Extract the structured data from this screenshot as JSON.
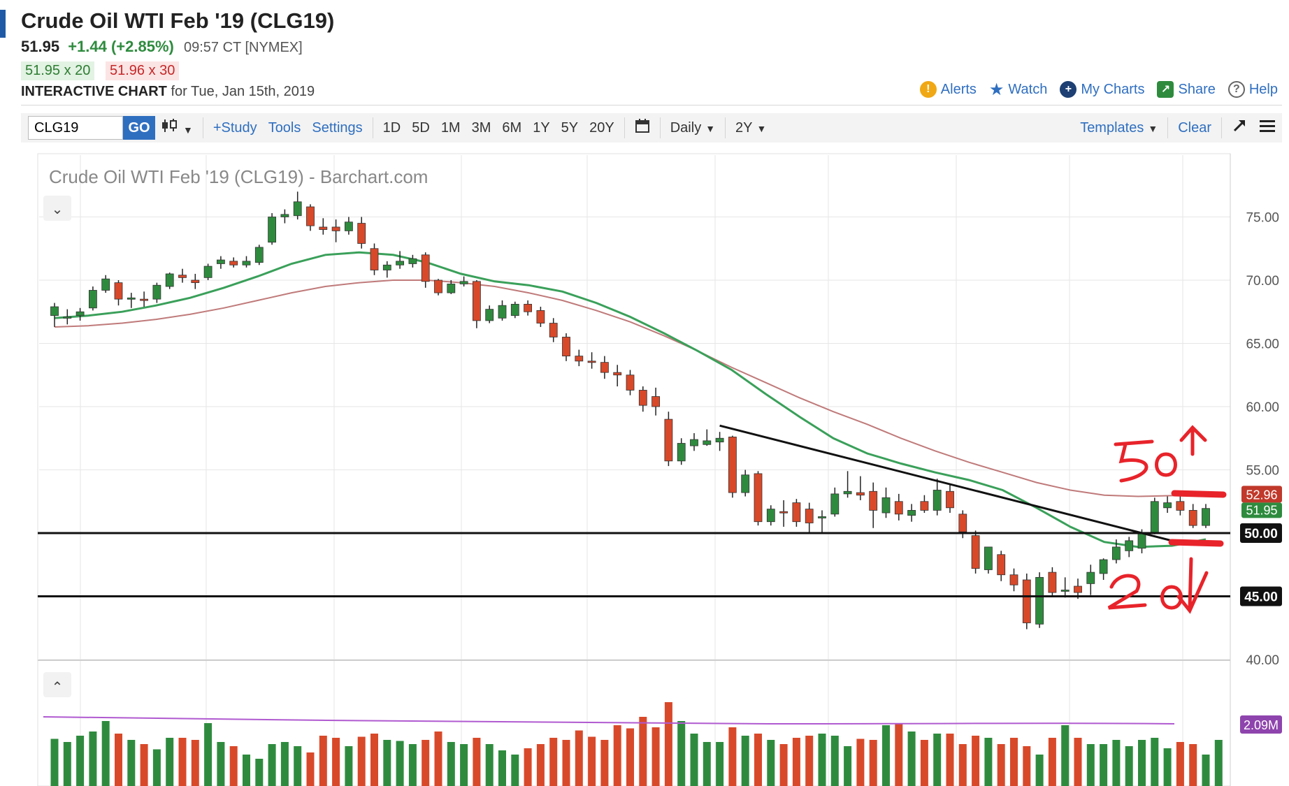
{
  "header": {
    "title": "Crude Oil WTI Feb '19 (CLG19)",
    "last": "51.95",
    "change": "+1.44 (+2.85%)",
    "time": "09:57 CT [NYMEX]",
    "bid": "51.95 x 20",
    "ask": "51.96 x 30",
    "interactive_label": "INTERACTIVE CHART",
    "interactive_date": "for Tue, Jan 15th, 2019"
  },
  "top_links": {
    "alerts": "Alerts",
    "watch": "Watch",
    "my_charts": "My Charts",
    "share": "Share",
    "help": "Help"
  },
  "toolbar": {
    "symbol_value": "CLG19",
    "go": "GO",
    "study": "+Study",
    "tools": "Tools",
    "settings": "Settings",
    "ranges": [
      "1D",
      "5D",
      "1M",
      "3M",
      "6M",
      "1Y",
      "5Y",
      "20Y"
    ],
    "period": "Daily",
    "span": "2Y",
    "templates": "Templates",
    "clear": "Clear"
  },
  "colors": {
    "up": "#2e8b3e",
    "down": "#d8492a",
    "ma_short": "#3aa05a",
    "ma_long": "#c07a7a",
    "volume_ma": "#b05ad0",
    "annotation": "#e8232a",
    "link": "#2f6fc0"
  },
  "chart_data": {
    "type": "candlestick",
    "title": "Crude Oil WTI Feb '19 (CLG19) - Barchart.com",
    "ylim": [
      40,
      77.5
    ],
    "y_ticks": [
      "75.00",
      "70.00",
      "65.00",
      "60.00",
      "55.00",
      "50.00",
      "45.00",
      "40.00"
    ],
    "grid": true,
    "candles": [
      {
        "o": 67.2,
        "h": 68.2,
        "l": 66.3,
        "c": 67.9
      },
      {
        "o": 67.0,
        "h": 67.7,
        "l": 66.5,
        "c": 67.1
      },
      {
        "o": 67.2,
        "h": 67.8,
        "l": 66.8,
        "c": 67.5
      },
      {
        "o": 67.8,
        "h": 69.5,
        "l": 67.6,
        "c": 69.2
      },
      {
        "o": 69.2,
        "h": 70.4,
        "l": 69.0,
        "c": 70.1
      },
      {
        "o": 69.8,
        "h": 70.0,
        "l": 68.0,
        "c": 68.5
      },
      {
        "o": 68.6,
        "h": 69.0,
        "l": 67.8,
        "c": 68.6
      },
      {
        "o": 68.5,
        "h": 69.1,
        "l": 67.9,
        "c": 68.4
      },
      {
        "o": 68.5,
        "h": 69.8,
        "l": 68.2,
        "c": 69.6
      },
      {
        "o": 69.5,
        "h": 70.6,
        "l": 69.3,
        "c": 70.5
      },
      {
        "o": 70.4,
        "h": 70.9,
        "l": 69.8,
        "c": 70.2
      },
      {
        "o": 70.0,
        "h": 70.5,
        "l": 69.3,
        "c": 69.8
      },
      {
        "o": 70.2,
        "h": 71.3,
        "l": 70.0,
        "c": 71.1
      },
      {
        "o": 71.3,
        "h": 71.9,
        "l": 70.9,
        "c": 71.6
      },
      {
        "o": 71.5,
        "h": 71.8,
        "l": 71.0,
        "c": 71.2
      },
      {
        "o": 71.2,
        "h": 71.9,
        "l": 71.0,
        "c": 71.5
      },
      {
        "o": 71.4,
        "h": 72.8,
        "l": 71.2,
        "c": 72.6
      },
      {
        "o": 73.0,
        "h": 75.3,
        "l": 72.8,
        "c": 75.0
      },
      {
        "o": 75.0,
        "h": 75.6,
        "l": 74.5,
        "c": 75.2
      },
      {
        "o": 75.1,
        "h": 77.0,
        "l": 74.8,
        "c": 76.2
      },
      {
        "o": 75.8,
        "h": 76.0,
        "l": 73.9,
        "c": 74.3
      },
      {
        "o": 74.2,
        "h": 74.9,
        "l": 73.6,
        "c": 74.0
      },
      {
        "o": 74.2,
        "h": 74.8,
        "l": 73.0,
        "c": 73.9
      },
      {
        "o": 73.9,
        "h": 75.0,
        "l": 73.6,
        "c": 74.6
      },
      {
        "o": 74.5,
        "h": 75.0,
        "l": 72.5,
        "c": 72.9
      },
      {
        "o": 72.5,
        "h": 72.9,
        "l": 70.4,
        "c": 70.8
      },
      {
        "o": 70.8,
        "h": 71.5,
        "l": 70.2,
        "c": 71.2
      },
      {
        "o": 71.2,
        "h": 72.3,
        "l": 70.9,
        "c": 71.5
      },
      {
        "o": 71.3,
        "h": 72.0,
        "l": 71.0,
        "c": 71.7
      },
      {
        "o": 72.0,
        "h": 72.2,
        "l": 69.4,
        "c": 69.9
      },
      {
        "o": 70.0,
        "h": 70.1,
        "l": 68.8,
        "c": 69.0
      },
      {
        "o": 69.0,
        "h": 70.0,
        "l": 68.9,
        "c": 69.7
      },
      {
        "o": 69.7,
        "h": 70.3,
        "l": 69.5,
        "c": 69.9
      },
      {
        "o": 69.9,
        "h": 70.0,
        "l": 66.2,
        "c": 66.8
      },
      {
        "o": 66.8,
        "h": 68.0,
        "l": 66.6,
        "c": 67.7
      },
      {
        "o": 67.0,
        "h": 68.4,
        "l": 66.8,
        "c": 68.0
      },
      {
        "o": 67.2,
        "h": 68.3,
        "l": 67.0,
        "c": 68.1
      },
      {
        "o": 68.1,
        "h": 68.4,
        "l": 67.2,
        "c": 67.5
      },
      {
        "o": 67.6,
        "h": 67.9,
        "l": 66.3,
        "c": 66.6
      },
      {
        "o": 66.6,
        "h": 67.0,
        "l": 65.1,
        "c": 65.5
      },
      {
        "o": 65.5,
        "h": 65.8,
        "l": 63.6,
        "c": 64.0
      },
      {
        "o": 64.0,
        "h": 64.5,
        "l": 63.2,
        "c": 63.6
      },
      {
        "o": 63.6,
        "h": 64.3,
        "l": 63.0,
        "c": 63.5
      },
      {
        "o": 63.5,
        "h": 64.0,
        "l": 62.2,
        "c": 62.7
      },
      {
        "o": 62.7,
        "h": 63.3,
        "l": 61.6,
        "c": 62.5
      },
      {
        "o": 62.5,
        "h": 62.9,
        "l": 60.9,
        "c": 61.3
      },
      {
        "o": 61.3,
        "h": 61.6,
        "l": 59.6,
        "c": 60.1
      },
      {
        "o": 60.8,
        "h": 61.5,
        "l": 59.3,
        "c": 60.0
      },
      {
        "o": 59.0,
        "h": 59.6,
        "l": 55.3,
        "c": 55.7
      },
      {
        "o": 55.7,
        "h": 57.5,
        "l": 55.4,
        "c": 57.1
      },
      {
        "o": 56.9,
        "h": 57.9,
        "l": 56.5,
        "c": 57.4
      },
      {
        "o": 57.0,
        "h": 58.2,
        "l": 56.9,
        "c": 57.3
      },
      {
        "o": 57.2,
        "h": 58.0,
        "l": 56.5,
        "c": 57.5
      },
      {
        "o": 57.6,
        "h": 57.7,
        "l": 52.8,
        "c": 53.2
      },
      {
        "o": 53.2,
        "h": 55.0,
        "l": 52.9,
        "c": 54.6
      },
      {
        "o": 54.7,
        "h": 54.9,
        "l": 50.6,
        "c": 50.9
      },
      {
        "o": 50.9,
        "h": 52.2,
        "l": 50.6,
        "c": 51.9
      },
      {
        "o": 51.7,
        "h": 52.6,
        "l": 50.5,
        "c": 51.6
      },
      {
        "o": 52.4,
        "h": 52.7,
        "l": 50.5,
        "c": 50.9
      },
      {
        "o": 51.9,
        "h": 52.4,
        "l": 50.0,
        "c": 50.8
      },
      {
        "o": 51.2,
        "h": 51.8,
        "l": 50.0,
        "c": 51.3
      },
      {
        "o": 51.5,
        "h": 53.6,
        "l": 51.3,
        "c": 53.1
      },
      {
        "o": 53.1,
        "h": 54.9,
        "l": 52.8,
        "c": 53.3
      },
      {
        "o": 53.2,
        "h": 54.5,
        "l": 52.6,
        "c": 53.0
      },
      {
        "o": 53.3,
        "h": 54.0,
        "l": 50.4,
        "c": 51.8
      },
      {
        "o": 51.6,
        "h": 53.6,
        "l": 51.2,
        "c": 52.8
      },
      {
        "o": 52.5,
        "h": 53.1,
        "l": 51.0,
        "c": 51.5
      },
      {
        "o": 51.4,
        "h": 52.3,
        "l": 50.9,
        "c": 51.8
      },
      {
        "o": 52.5,
        "h": 53.0,
        "l": 51.6,
        "c": 51.8
      },
      {
        "o": 51.8,
        "h": 54.3,
        "l": 51.4,
        "c": 53.4
      },
      {
        "o": 53.3,
        "h": 53.8,
        "l": 51.6,
        "c": 52.0
      },
      {
        "o": 51.5,
        "h": 51.8,
        "l": 49.6,
        "c": 50.1
      },
      {
        "o": 49.8,
        "h": 50.2,
        "l": 46.8,
        "c": 47.2
      },
      {
        "o": 47.1,
        "h": 48.9,
        "l": 46.8,
        "c": 48.9
      },
      {
        "o": 48.3,
        "h": 48.6,
        "l": 46.2,
        "c": 46.7
      },
      {
        "o": 46.7,
        "h": 47.2,
        "l": 45.4,
        "c": 45.9
      },
      {
        "o": 46.3,
        "h": 46.8,
        "l": 42.4,
        "c": 42.9
      },
      {
        "o": 42.8,
        "h": 46.9,
        "l": 42.5,
        "c": 46.5
      },
      {
        "o": 46.9,
        "h": 47.3,
        "l": 45.0,
        "c": 45.3
      },
      {
        "o": 45.5,
        "h": 46.5,
        "l": 44.9,
        "c": 45.5
      },
      {
        "o": 45.8,
        "h": 46.4,
        "l": 44.8,
        "c": 45.3
      },
      {
        "o": 46.0,
        "h": 47.5,
        "l": 45.1,
        "c": 46.9
      },
      {
        "o": 46.8,
        "h": 48.0,
        "l": 46.3,
        "c": 47.9
      },
      {
        "o": 47.9,
        "h": 49.5,
        "l": 47.6,
        "c": 48.9
      },
      {
        "o": 48.6,
        "h": 49.7,
        "l": 48.1,
        "c": 49.4
      },
      {
        "o": 48.8,
        "h": 50.3,
        "l": 48.4,
        "c": 50.0
      },
      {
        "o": 50.0,
        "h": 52.8,
        "l": 49.9,
        "c": 52.5
      },
      {
        "o": 52.0,
        "h": 52.9,
        "l": 51.6,
        "c": 52.4
      },
      {
        "o": 52.5,
        "h": 53.0,
        "l": 51.4,
        "c": 51.8
      },
      {
        "o": 51.8,
        "h": 52.3,
        "l": 50.4,
        "c": 50.6
      },
      {
        "o": 50.6,
        "h": 52.3,
        "l": 50.4,
        "c": 51.95
      }
    ],
    "ma_short": [
      67.0,
      67.2,
      67.5,
      68.0,
      68.6,
      69.4,
      70.3,
      71.3,
      72.0,
      72.2,
      72.0,
      71.4,
      70.5,
      69.9,
      69.6,
      69.1,
      68.2,
      67.1,
      65.8,
      64.4,
      62.9,
      61.0,
      59.2,
      57.5,
      56.3,
      55.5,
      54.8,
      54.2,
      53.4,
      52.0,
      50.5,
      49.3,
      48.9,
      49.0,
      49.5
    ],
    "ma_long": [
      66.3,
      66.4,
      66.6,
      66.9,
      67.3,
      67.8,
      68.4,
      69.0,
      69.5,
      69.8,
      70.0,
      70.0,
      69.8,
      69.5,
      69.0,
      68.4,
      67.6,
      66.7,
      65.6,
      64.4,
      63.1,
      61.9,
      60.7,
      59.6,
      58.6,
      57.5,
      56.5,
      55.6,
      54.8,
      54.0,
      53.4,
      53.0,
      52.9,
      52.96,
      53.0
    ],
    "last_price_label": "51.95",
    "ma_long_label": "52.96",
    "support_lines": [
      {
        "value": 50.0,
        "label": "50.00"
      },
      {
        "value": 45.0,
        "label": "45.00"
      }
    ],
    "trendline": [
      {
        "i": 52,
        "v": 58.5
      },
      {
        "i": 88.5,
        "v": 49.1
      }
    ],
    "annotations": {
      "upper": "50",
      "lower": "20"
    },
    "volume": {
      "ma_label": "2.09M",
      "bars": [
        0.45,
        0.42,
        0.48,
        0.52,
        0.62,
        0.5,
        0.44,
        0.4,
        0.35,
        0.46,
        0.46,
        0.44,
        0.6,
        0.42,
        0.38,
        0.3,
        0.26,
        0.4,
        0.42,
        0.38,
        0.32,
        0.48,
        0.46,
        0.38,
        0.47,
        0.5,
        0.44,
        0.43,
        0.4,
        0.44,
        0.52,
        0.42,
        0.4,
        0.46,
        0.4,
        0.34,
        0.3,
        0.36,
        0.4,
        0.46,
        0.44,
        0.53,
        0.47,
        0.44,
        0.58,
        0.55,
        0.66,
        0.56,
        0.8,
        0.62,
        0.5,
        0.42,
        0.42,
        0.56,
        0.48,
        0.5,
        0.44,
        0.4,
        0.46,
        0.48,
        0.5,
        0.48,
        0.38,
        0.45,
        0.44,
        0.58,
        0.6,
        0.52,
        0.44,
        0.5,
        0.5,
        0.4,
        0.48,
        0.46,
        0.4,
        0.46,
        0.38,
        0.3,
        0.46,
        0.58,
        0.46,
        0.4,
        0.4,
        0.44,
        0.38,
        0.44,
        0.46,
        0.36,
        0.42,
        0.4,
        0.3,
        0.44
      ]
    }
  }
}
